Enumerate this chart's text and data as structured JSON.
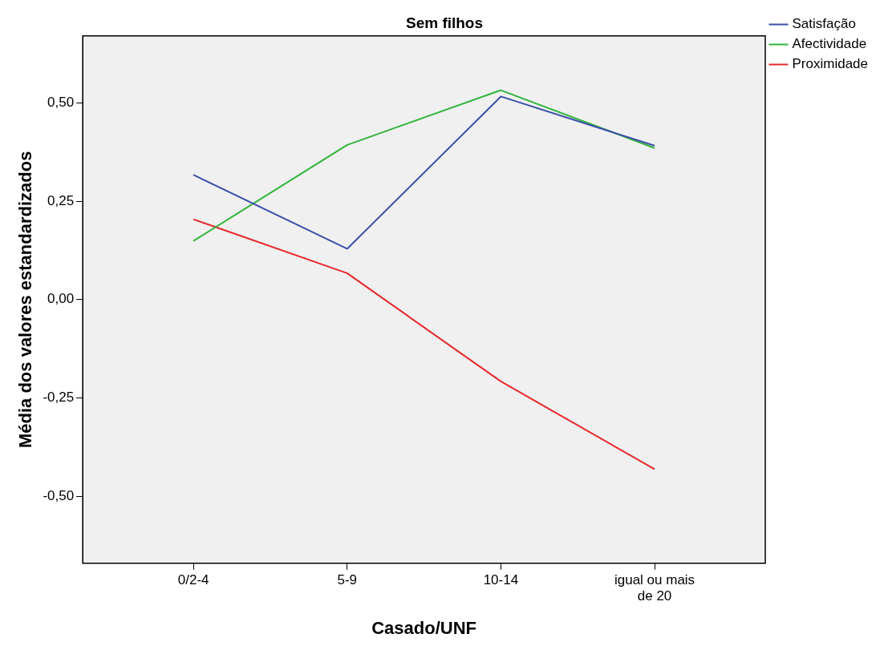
{
  "chart_data": {
    "type": "line",
    "title": "Sem filhos",
    "xlabel": "Casado/UNF",
    "ylabel": "Média dos valores estandardizados",
    "categories": [
      "0/2-4",
      "5-9",
      "10-14",
      "igual ou mais de 20"
    ],
    "series": [
      {
        "name": "Satisfação",
        "color": "#3a4fa8",
        "values": [
          0.317,
          0.129,
          0.516,
          0.391
        ]
      },
      {
        "name": "Afectividade",
        "color": "#2fb43a",
        "values": [
          0.149,
          0.393,
          0.532,
          0.385
        ]
      },
      {
        "name": "Proximidade",
        "color": "#e8272a",
        "values": [
          0.204,
          0.067,
          -0.208,
          -0.431
        ]
      }
    ],
    "ylim": [
      -0.67,
      0.67
    ],
    "yticks": [
      {
        "value": -0.5,
        "label": "-0,50"
      },
      {
        "value": -0.25,
        "label": "-0,25"
      },
      {
        "value": 0,
        "label": "0,00"
      },
      {
        "value": 0.25,
        "label": "0,25"
      },
      {
        "value": 0.5,
        "label": "0,50"
      }
    ],
    "grid": false,
    "legend": "top right",
    "marker": "none",
    "line_style": "solid"
  }
}
